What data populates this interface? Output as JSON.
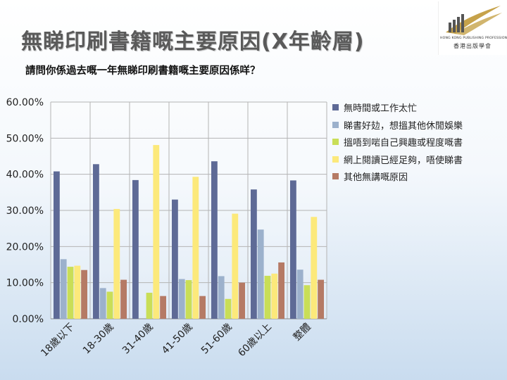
{
  "slide": {
    "title": "無睇印刷書籍嘅主要原因(X年齡層)",
    "subtitle": "請問你係過去嘅一年無睇印刷書籍嘅主要原因係咩？"
  },
  "logo": {
    "english": "HONG KONG PUBLISHING PROFESSIONALS SOCIETY",
    "chinese": "香港出版學會",
    "colors": [
      "#c6a24a",
      "#555555"
    ]
  },
  "chart_data": {
    "type": "bar",
    "categories": [
      "18歲以下",
      "18-30歲",
      "31-40歲",
      "41-50歲",
      "51-60歲",
      "60歲以上",
      "整體"
    ],
    "ylim": [
      0,
      60
    ],
    "yticks": [
      "0.00%",
      "10.00%",
      "20.00%",
      "30.00%",
      "40.00%",
      "50.00%",
      "60.00%"
    ],
    "grid": true,
    "legend_position": "right",
    "series": [
      {
        "name": "無時間或工作太忙",
        "color": "#5e6a96",
        "values": [
          40.8,
          42.8,
          38.4,
          33.0,
          43.6,
          35.8,
          38.3
        ]
      },
      {
        "name": "睇書好攰，想搵其他休閒娛樂",
        "color": "#9cb1cc",
        "values": [
          16.5,
          8.5,
          0,
          11.0,
          11.8,
          24.7,
          13.6
        ]
      },
      {
        "name": "搵唔到啱自己興趣或程度嘅書",
        "color": "#c9de57",
        "values": [
          14.4,
          7.5,
          7.2,
          10.7,
          5.5,
          11.9,
          9.3
        ]
      },
      {
        "name": "網上閱讀已經足夠，唔使睇書",
        "color": "#fce97b",
        "values": [
          14.7,
          30.4,
          48.1,
          39.3,
          29.1,
          12.5,
          28.2
        ]
      },
      {
        "name": "其他無講嘅原因",
        "color": "#b57a65",
        "values": [
          13.5,
          10.8,
          6.3,
          6.3,
          10.0,
          15.6,
          10.8
        ]
      }
    ]
  }
}
